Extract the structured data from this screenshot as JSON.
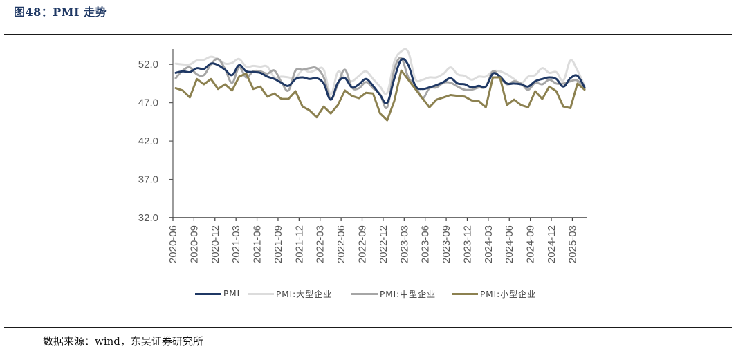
{
  "header": {
    "title": "图48：PMI 走势"
  },
  "footer": {
    "source": "数据来源：wind，东吴证券研究所"
  },
  "legend": [
    {
      "label": "PMI",
      "color": "#1f3864"
    },
    {
      "label": "PMI:大型企业",
      "color": "#dcdcdc"
    },
    {
      "label": "PMI:中型企业",
      "color": "#a6a6a6"
    },
    {
      "label": "PMI:小型企业",
      "color": "#8c8150"
    }
  ],
  "chart_data": {
    "type": "line",
    "title": "PMI 走势",
    "xlabel": "",
    "ylabel": "",
    "ylim": [
      32.0,
      54.0
    ],
    "yticks": [
      "52.0",
      "47.0",
      "42.0",
      "37.0",
      "32.0"
    ],
    "xtick_labels": [
      "2020-06",
      "2020-09",
      "2020-12",
      "2021-03",
      "2021-06",
      "2021-09",
      "2021-12",
      "2022-03",
      "2022-06",
      "2022-09",
      "2022-12",
      "2023-03",
      "2023-06",
      "2023-09",
      "2023-12",
      "2024-03",
      "2024-06",
      "2024-09",
      "2024-12",
      "2025-03"
    ],
    "grid": false,
    "legend_position": "bottom",
    "x": [
      "2020-06",
      "2020-07",
      "2020-08",
      "2020-09",
      "2020-10",
      "2020-11",
      "2020-12",
      "2021-01",
      "2021-02",
      "2021-03",
      "2021-04",
      "2021-05",
      "2021-06",
      "2021-07",
      "2021-08",
      "2021-09",
      "2021-10",
      "2021-11",
      "2021-12",
      "2022-01",
      "2022-02",
      "2022-03",
      "2022-04",
      "2022-05",
      "2022-06",
      "2022-07",
      "2022-08",
      "2022-09",
      "2022-10",
      "2022-11",
      "2022-12",
      "2023-01",
      "2023-02",
      "2023-03",
      "2023-04",
      "2023-05",
      "2023-06",
      "2023-07",
      "2023-08",
      "2023-09",
      "2023-10",
      "2023-11",
      "2023-12",
      "2024-01",
      "2024-02",
      "2024-03",
      "2024-04",
      "2024-05",
      "2024-06",
      "2024-07",
      "2024-08",
      "2024-09",
      "2024-10",
      "2024-11",
      "2024-12",
      "2025-01",
      "2025-02",
      "2025-03",
      "2025-04"
    ],
    "series": [
      {
        "name": "PMI",
        "color": "#1f3864",
        "width": 3,
        "values": [
          50.9,
          51.1,
          51.0,
          51.5,
          51.4,
          52.1,
          51.9,
          51.3,
          50.6,
          51.9,
          51.1,
          51.0,
          50.9,
          50.4,
          50.1,
          49.6,
          49.2,
          50.1,
          50.3,
          50.1,
          50.2,
          49.5,
          47.4,
          49.6,
          50.2,
          49.0,
          49.4,
          50.1,
          49.2,
          48.0,
          47.0,
          50.1,
          52.6,
          51.9,
          49.2,
          48.8,
          49.0,
          49.3,
          49.7,
          50.2,
          49.5,
          49.4,
          49.0,
          49.2,
          49.1,
          50.8,
          50.4,
          49.5,
          49.5,
          49.4,
          49.1,
          49.8,
          50.1,
          50.3,
          50.1,
          49.1,
          50.2,
          50.5,
          49.0
        ]
      },
      {
        "name": "PMI:大型企业",
        "color": "#dcdcdc",
        "width": 3,
        "values": [
          52.1,
          52.0,
          52.0,
          52.5,
          52.6,
          53.0,
          52.7,
          52.1,
          52.2,
          52.7,
          51.7,
          51.8,
          51.7,
          51.7,
          50.3,
          50.4,
          50.3,
          50.2,
          51.3,
          51.0,
          51.3,
          51.3,
          48.1,
          51.0,
          50.2,
          49.8,
          50.5,
          51.1,
          50.1,
          49.1,
          48.3,
          52.3,
          53.7,
          53.6,
          50.1,
          50.0,
          50.3,
          50.3,
          50.8,
          51.6,
          50.7,
          50.5,
          50.0,
          50.4,
          50.4,
          51.1,
          51.1,
          50.7,
          50.1,
          49.5,
          50.4,
          50.6,
          51.5,
          50.9,
          51.0,
          49.9,
          52.5,
          51.2,
          49.2
        ]
      },
      {
        "name": "PMI:中型企业",
        "color": "#a6a6a6",
        "width": 3,
        "values": [
          50.2,
          51.2,
          51.6,
          50.7,
          50.6,
          52.0,
          52.7,
          51.4,
          49.6,
          51.6,
          50.3,
          51.1,
          51.1,
          50.8,
          51.2,
          49.7,
          48.6,
          51.2,
          51.3,
          51.5,
          51.5,
          50.3,
          47.5,
          49.4,
          51.3,
          49.0,
          48.9,
          49.7,
          48.9,
          48.1,
          46.4,
          51.3,
          52.8,
          50.3,
          49.3,
          47.6,
          48.9,
          49.0,
          49.6,
          49.6,
          49.1,
          48.7,
          48.7,
          49.0,
          49.1,
          51.1,
          50.3,
          49.4,
          49.8,
          49.5,
          48.7,
          49.6,
          49.4,
          50.0,
          49.5,
          49.5,
          49.8,
          49.9,
          48.8
        ]
      },
      {
        "name": "PMI:小型企业",
        "color": "#8c8150",
        "width": 3,
        "values": [
          48.9,
          48.6,
          47.7,
          50.1,
          49.4,
          50.1,
          48.8,
          49.4,
          48.6,
          50.4,
          50.8,
          48.8,
          49.1,
          47.8,
          48.2,
          47.5,
          47.5,
          48.5,
          46.5,
          46.0,
          45.1,
          46.5,
          45.6,
          46.7,
          48.6,
          47.9,
          47.6,
          48.3,
          48.2,
          45.6,
          44.7,
          47.2,
          51.2,
          50.0,
          48.8,
          47.6,
          46.4,
          47.4,
          47.7,
          48.0,
          47.9,
          47.8,
          47.3,
          47.2,
          46.4,
          50.3,
          50.3,
          46.7,
          47.4,
          46.7,
          46.4,
          48.5,
          47.5,
          49.1,
          48.5,
          46.5,
          46.3,
          49.5,
          48.7
        ]
      }
    ]
  }
}
